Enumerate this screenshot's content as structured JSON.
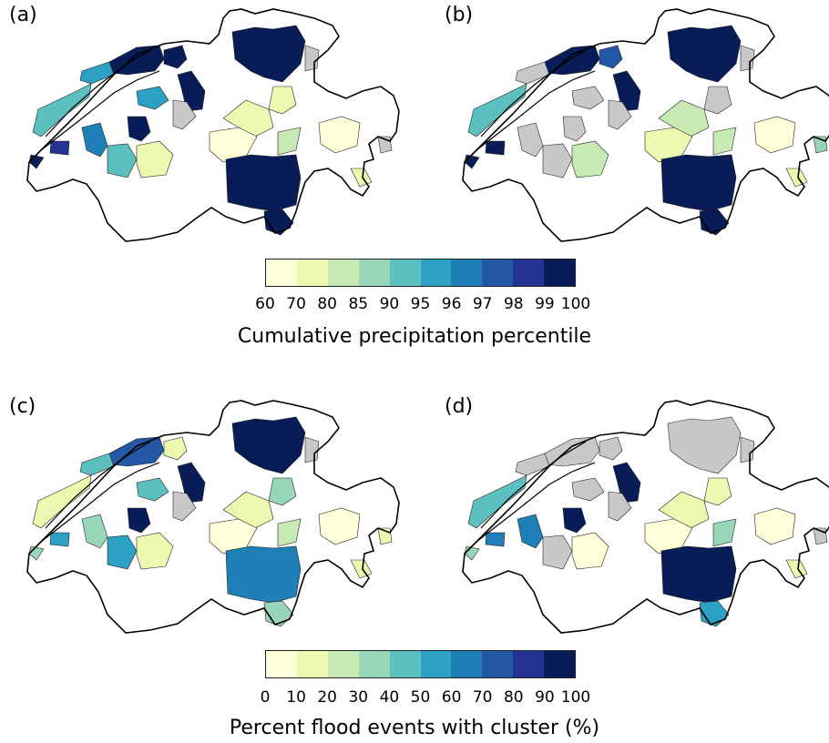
{
  "panels": [
    {
      "label": "(a)",
      "colorbar": "precip"
    },
    {
      "label": "(b)",
      "colorbar": "precip"
    },
    {
      "label": "(c)",
      "colorbar": "percent"
    },
    {
      "label": "(d)",
      "colorbar": "percent"
    }
  ],
  "colorbars": {
    "precip": {
      "title": "Cumulative precipitation percentile",
      "ticks": [
        "60",
        "70",
        "80",
        "85",
        "90",
        "95",
        "96",
        "97",
        "98",
        "99",
        "100"
      ]
    },
    "percent": {
      "title": "Percent flood events with cluster (%)",
      "ticks": [
        "0",
        "10",
        "20",
        "30",
        "40",
        "50",
        "60",
        "70",
        "80",
        "90",
        "100"
      ]
    }
  },
  "colors": {
    "classes": [
      "#ffffd9",
      "#edf8b1",
      "#c7e9b4",
      "#97d6b9",
      "#5dc0c0",
      "#2ca1c4",
      "#1f80b8",
      "#2458a6",
      "#243392",
      "#081d58"
    ],
    "no_data": "#c8c8c8",
    "border": "#000000"
  }
}
